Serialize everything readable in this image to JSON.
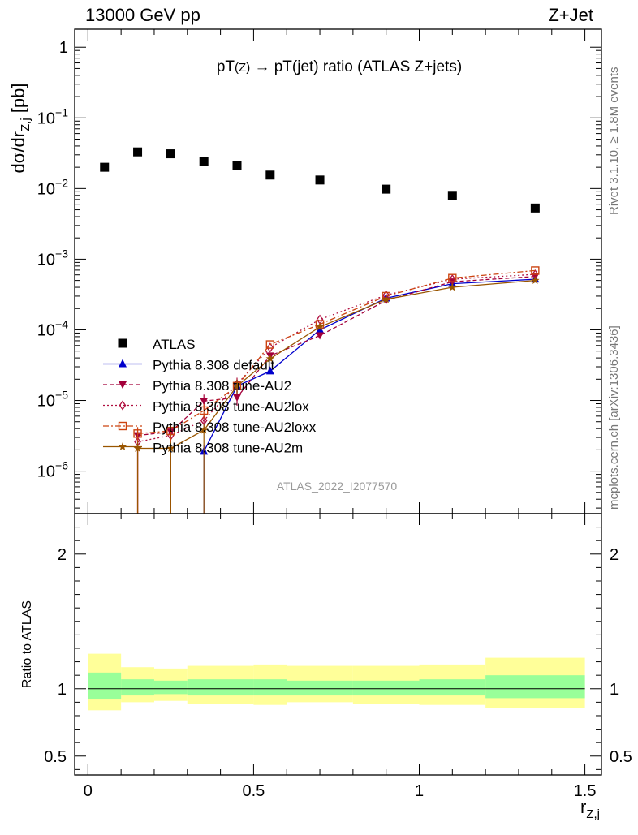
{
  "header": {
    "left": "13000 GeV pp",
    "right": "Z+Jet"
  },
  "side_labels": {
    "top": "Rivet 3.1.10, ≥ 1.8M events",
    "bottom": "mcplots.cern.ch [arXiv:1306.3436]"
  },
  "chart_data": [
    {
      "type": "line",
      "title": "pT(Z) → pT(jet) ratio (ATLAS Z+jets)",
      "title_parts": {
        "main": "pT",
        "sub": "(Z)",
        "mid": " → pT(jet) ratio (ATLAS Z+jets)"
      },
      "ylabel": "dσ/dr_{Z,j} [pb]",
      "ylabel_parts": {
        "main": "dσ/dr",
        "sub": "Z,j",
        "unit": " [pb]"
      },
      "xlabel": "r_{Z,j}",
      "yscale": "log",
      "ylim": [
        2.5e-07,
        1.8
      ],
      "xlim": [
        -0.04,
        1.55
      ],
      "y_ticks": [
        {
          "value": 1,
          "label": "1"
        },
        {
          "value": 0.1,
          "label": "10",
          "exp": "−1"
        },
        {
          "value": 0.01,
          "label": "10",
          "exp": "−2"
        },
        {
          "value": 0.001,
          "label": "10",
          "exp": "−3"
        },
        {
          "value": 0.0001,
          "label": "10",
          "exp": "−4"
        },
        {
          "value": 1e-05,
          "label": "10",
          "exp": "−5"
        },
        {
          "value": 1e-06,
          "label": "10",
          "exp": "−6"
        }
      ],
      "watermark": "ATLAS_2022_I2077570",
      "legend_position": "lower-left",
      "series": [
        {
          "name": "ATLAS",
          "color": "#000000",
          "marker": "square",
          "x": [
            0.05,
            0.15,
            0.25,
            0.35,
            0.45,
            0.55,
            0.7,
            0.9,
            1.1,
            1.35
          ],
          "values": [
            0.02,
            0.033,
            0.031,
            0.024,
            0.021,
            0.0155,
            0.0132,
            0.0098,
            0.008,
            0.0053
          ]
        },
        {
          "name": "Pythia 8.308 default",
          "color": "#0000cc",
          "marker": "triangle-up",
          "dash": "",
          "x": [
            0.35,
            0.45,
            0.55,
            0.7,
            0.9,
            1.1,
            1.35
          ],
          "values": [
            1.9e-06,
            1.6e-05,
            2.6e-05,
            0.0001,
            0.00028,
            0.00045,
            0.00052
          ]
        },
        {
          "name": "Pythia 8.308 tune-AU2",
          "color": "#a3003a",
          "marker": "triangle-down",
          "dash": "5,3",
          "x": [
            0.15,
            0.25,
            0.35,
            0.45,
            0.55,
            0.7,
            0.9,
            1.1,
            1.35
          ],
          "values": [
            3.2e-06,
            3.6e-06,
            9.8e-06,
            1.1e-05,
            4.3e-05,
            8.3e-05,
            0.00026,
            0.00048,
            0.00057
          ]
        },
        {
          "name": "Pythia 8.308 tune-AU2lox",
          "color": "#b01040",
          "marker": "diamond-open",
          "dash": "2,3",
          "x": [
            0.15,
            0.25,
            0.35,
            0.45,
            0.55,
            0.7,
            0.9,
            1.1,
            1.35
          ],
          "values": [
            2.6e-06,
            3.2e-06,
            5.2e-06,
            1.7e-05,
            5.6e-05,
            0.00014,
            0.00031,
            0.00052,
            0.00061
          ]
        },
        {
          "name": "Pythia 8.308 tune-AU2loxx",
          "color": "#cc4411",
          "marker": "square-open",
          "dash": "7,3,2,3",
          "x": [
            0.15,
            0.25,
            0.35,
            0.45,
            0.55,
            0.7,
            0.9,
            1.1,
            1.35
          ],
          "values": [
            3.4e-06,
            3.7e-06,
            7.2e-06,
            1.6e-05,
            6.2e-05,
            0.00012,
            0.0003,
            0.00054,
            0.00069
          ]
        },
        {
          "name": "Pythia 8.308 tune-AU2m",
          "color": "#995500",
          "marker": "star",
          "dash": "",
          "x": [
            0.15,
            0.25,
            0.35,
            0.45,
            0.55,
            0.7,
            0.9,
            1.1,
            1.35
          ],
          "values": [
            2.1e-06,
            2.1e-06,
            3.8e-06,
            1.6e-05,
            3.9e-05,
            0.00011,
            0.00027,
            0.0004,
            0.0005
          ]
        }
      ]
    },
    {
      "type": "area",
      "ylabel": "Ratio to ATLAS",
      "xlabel": "r_{Z,j}",
      "ylim": [
        0.36,
        2.3
      ],
      "xlim": [
        -0.04,
        1.55
      ],
      "y_ticks": [
        {
          "value": 0.5,
          "label": "0.5"
        },
        {
          "value": 1,
          "label": "1"
        },
        {
          "value": 2,
          "label": "2"
        }
      ],
      "x_ticks": [
        {
          "value": 0,
          "label": "0"
        },
        {
          "value": 0.5,
          "label": "0.5"
        },
        {
          "value": 1,
          "label": "1"
        },
        {
          "value": 1.5,
          "label": "1.5"
        }
      ],
      "reference_line": 1,
      "bins": [
        {
          "lo": 0.0,
          "hi": 0.1,
          "stat_lo": 0.92,
          "stat_hi": 1.12,
          "tot_lo": 0.84,
          "tot_hi": 1.26
        },
        {
          "lo": 0.1,
          "hi": 0.2,
          "stat_lo": 0.95,
          "stat_hi": 1.07,
          "tot_lo": 0.9,
          "tot_hi": 1.16
        },
        {
          "lo": 0.2,
          "hi": 0.3,
          "stat_lo": 0.96,
          "stat_hi": 1.06,
          "tot_lo": 0.91,
          "tot_hi": 1.15
        },
        {
          "lo": 0.3,
          "hi": 0.5,
          "stat_lo": 0.95,
          "stat_hi": 1.07,
          "tot_lo": 0.89,
          "tot_hi": 1.17
        },
        {
          "lo": 0.5,
          "hi": 0.6,
          "stat_lo": 0.95,
          "stat_hi": 1.07,
          "tot_lo": 0.88,
          "tot_hi": 1.18
        },
        {
          "lo": 0.6,
          "hi": 0.8,
          "stat_lo": 0.95,
          "stat_hi": 1.06,
          "tot_lo": 0.9,
          "tot_hi": 1.17
        },
        {
          "lo": 0.8,
          "hi": 1.0,
          "stat_lo": 0.95,
          "stat_hi": 1.06,
          "tot_lo": 0.89,
          "tot_hi": 1.17
        },
        {
          "lo": 1.0,
          "hi": 1.2,
          "stat_lo": 0.95,
          "stat_hi": 1.07,
          "tot_lo": 0.88,
          "tot_hi": 1.18
        },
        {
          "lo": 1.2,
          "hi": 1.5,
          "stat_lo": 0.93,
          "stat_hi": 1.1,
          "tot_lo": 0.86,
          "tot_hi": 1.23
        }
      ],
      "colors": {
        "stat": "#99ff99",
        "total": "#ffff99",
        "line": "#000000"
      }
    }
  ]
}
